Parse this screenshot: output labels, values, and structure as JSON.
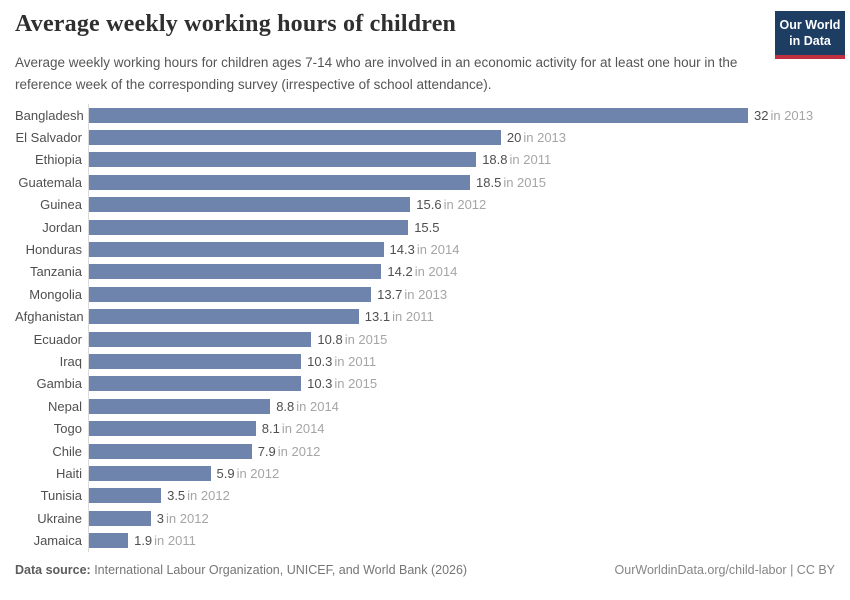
{
  "header": {
    "title": "Average weekly working hours of children",
    "subtitle": "Average weekly working hours for children ages 7-14 who are involved in an economic activity for at least one hour in the reference week of the corresponding survey (irrespective of school attendance).",
    "logo_line1": "Our World",
    "logo_line2": "in Data"
  },
  "chart_data": {
    "type": "bar",
    "orientation": "horizontal",
    "title": "Average weekly working hours of children",
    "xlabel": "",
    "ylabel": "",
    "xlim": [
      0,
      32
    ],
    "grid": false,
    "legend": "none",
    "bar_color": "#6e84ad",
    "categories": [
      "Bangladesh",
      "El Salvador",
      "Ethiopia",
      "Guatemala",
      "Guinea",
      "Jordan",
      "Honduras",
      "Tanzania",
      "Mongolia",
      "Afghanistan",
      "Ecuador",
      "Iraq",
      "Gambia",
      "Nepal",
      "Togo",
      "Chile",
      "Haiti",
      "Tunisia",
      "Ukraine",
      "Jamaica"
    ],
    "values": [
      32,
      20,
      18.8,
      18.5,
      15.6,
      15.5,
      14.3,
      14.2,
      13.7,
      13.1,
      10.8,
      10.3,
      10.3,
      8.8,
      8.1,
      7.9,
      5.9,
      3.5,
      3,
      1.9
    ],
    "value_labels": [
      "32",
      "20",
      "18.8",
      "18.5",
      "15.6",
      "15.5",
      "14.3",
      "14.2",
      "13.7",
      "13.1",
      "10.8",
      "10.3",
      "10.3",
      "8.8",
      "8.1",
      "7.9",
      "5.9",
      "3.5",
      "3",
      "1.9"
    ],
    "year_labels": [
      "in 2013",
      "in 2013",
      "in 2011",
      "in 2015",
      "in 2012",
      "",
      "in 2014",
      "in 2014",
      "in 2013",
      "in 2011",
      "in 2015",
      "in 2011",
      "in 2015",
      "in 2014",
      "in 2014",
      "in 2012",
      "in 2012",
      "in 2012",
      "in 2012",
      "in 2011"
    ]
  },
  "footer": {
    "data_source_label": "Data source:",
    "data_source_text": " International Labour Organization, UNICEF, and World Bank (2026)",
    "right_text": "OurWorldinData.org/child-labor | CC BY"
  }
}
